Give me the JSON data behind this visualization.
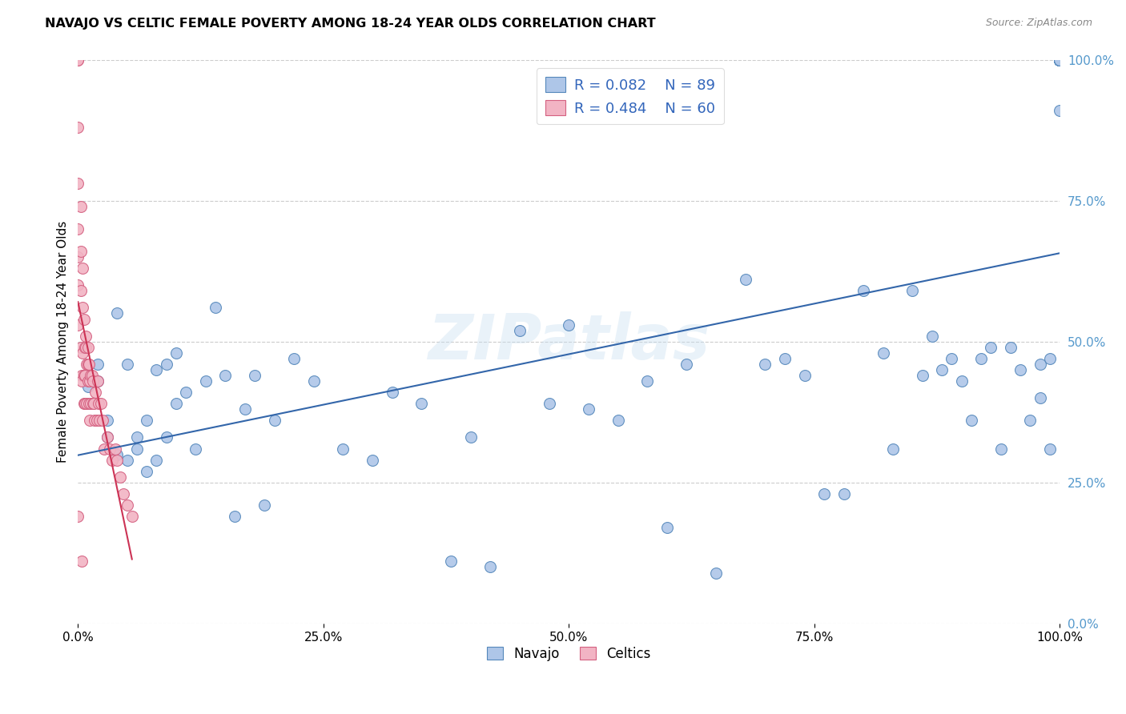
{
  "title": "NAVAJO VS CELTIC FEMALE POVERTY AMONG 18-24 YEAR OLDS CORRELATION CHART",
  "source": "Source: ZipAtlas.com",
  "ylabel": "Female Poverty Among 18-24 Year Olds",
  "xlim": [
    0.0,
    1.0
  ],
  "ylim": [
    0.0,
    1.0
  ],
  "xticks": [
    0.0,
    0.25,
    0.5,
    0.75,
    1.0
  ],
  "yticks": [
    0.0,
    0.25,
    0.5,
    0.75,
    1.0
  ],
  "xtick_labels": [
    "0.0%",
    "25.0%",
    "50.0%",
    "75.0%",
    "100.0%"
  ],
  "ytick_labels": [
    "0.0%",
    "25.0%",
    "50.0%",
    "75.0%",
    "100.0%"
  ],
  "navajo_color": "#aec6e8",
  "celtics_color": "#f2b4c4",
  "navajo_edge_color": "#5588bb",
  "celtics_edge_color": "#d46080",
  "trend_navajo_color": "#3366aa",
  "trend_celtics_color": "#cc3355",
  "legend_r_navajo": "R = 0.082",
  "legend_n_navajo": "N = 89",
  "legend_r_celtics": "R = 0.484",
  "legend_n_celtics": "N = 60",
  "watermark": "ZIPatlas",
  "navajo_x": [
    0.01,
    0.01,
    0.02,
    0.02,
    0.03,
    0.03,
    0.04,
    0.04,
    0.05,
    0.05,
    0.06,
    0.06,
    0.07,
    0.07,
    0.08,
    0.08,
    0.09,
    0.09,
    0.1,
    0.1,
    0.11,
    0.12,
    0.13,
    0.14,
    0.15,
    0.16,
    0.17,
    0.18,
    0.19,
    0.2,
    0.22,
    0.24,
    0.27,
    0.3,
    0.32,
    0.35,
    0.38,
    0.4,
    0.42,
    0.45,
    0.48,
    0.5,
    0.52,
    0.55,
    0.58,
    0.6,
    0.62,
    0.65,
    0.68,
    0.7,
    0.72,
    0.74,
    0.76,
    0.78,
    0.8,
    0.82,
    0.83,
    0.85,
    0.86,
    0.87,
    0.88,
    0.89,
    0.9,
    0.91,
    0.92,
    0.93,
    0.94,
    0.95,
    0.96,
    0.97,
    0.98,
    0.98,
    0.99,
    0.99,
    1.0,
    1.0,
    1.0,
    1.0,
    1.0,
    1.0,
    1.0,
    1.0,
    1.0,
    1.0,
    1.0,
    1.0,
    1.0,
    1.0,
    1.0
  ],
  "navajo_y": [
    0.44,
    0.42,
    0.46,
    0.43,
    0.33,
    0.36,
    0.3,
    0.55,
    0.29,
    0.46,
    0.31,
    0.33,
    0.27,
    0.36,
    0.29,
    0.45,
    0.33,
    0.46,
    0.39,
    0.48,
    0.41,
    0.31,
    0.43,
    0.56,
    0.44,
    0.19,
    0.38,
    0.44,
    0.21,
    0.36,
    0.47,
    0.43,
    0.31,
    0.29,
    0.41,
    0.39,
    0.11,
    0.33,
    0.1,
    0.52,
    0.39,
    0.53,
    0.38,
    0.36,
    0.43,
    0.17,
    0.46,
    0.09,
    0.61,
    0.46,
    0.47,
    0.44,
    0.23,
    0.23,
    0.59,
    0.48,
    0.31,
    0.59,
    0.44,
    0.51,
    0.45,
    0.47,
    0.43,
    0.36,
    0.47,
    0.49,
    0.31,
    0.49,
    0.45,
    0.36,
    0.4,
    0.46,
    0.31,
    0.47,
    1.0,
    1.0,
    1.0,
    1.0,
    1.0,
    1.0,
    1.0,
    1.0,
    1.0,
    1.0,
    1.0,
    1.0,
    0.91,
    1.0,
    1.0
  ],
  "celtics_x": [
    0.0,
    0.0,
    0.0,
    0.0,
    0.0,
    0.0,
    0.0,
    0.0,
    0.0,
    0.003,
    0.003,
    0.003,
    0.003,
    0.004,
    0.004,
    0.004,
    0.005,
    0.005,
    0.005,
    0.006,
    0.006,
    0.006,
    0.007,
    0.007,
    0.007,
    0.008,
    0.008,
    0.009,
    0.009,
    0.01,
    0.01,
    0.01,
    0.011,
    0.011,
    0.012,
    0.012,
    0.013,
    0.013,
    0.014,
    0.015,
    0.015,
    0.016,
    0.017,
    0.018,
    0.019,
    0.02,
    0.021,
    0.022,
    0.023,
    0.025,
    0.027,
    0.03,
    0.032,
    0.035,
    0.038,
    0.04,
    0.043,
    0.046,
    0.05,
    0.055
  ],
  "celtics_y": [
    1.0,
    1.0,
    0.88,
    0.78,
    0.7,
    0.65,
    0.6,
    0.53,
    0.19,
    0.74,
    0.66,
    0.59,
    0.49,
    0.44,
    0.11,
    0.43,
    0.63,
    0.56,
    0.48,
    0.44,
    0.39,
    0.54,
    0.49,
    0.44,
    0.39,
    0.51,
    0.49,
    0.46,
    0.39,
    0.49,
    0.46,
    0.43,
    0.39,
    0.46,
    0.43,
    0.36,
    0.44,
    0.39,
    0.44,
    0.39,
    0.43,
    0.39,
    0.36,
    0.41,
    0.36,
    0.43,
    0.39,
    0.36,
    0.39,
    0.36,
    0.31,
    0.33,
    0.31,
    0.29,
    0.31,
    0.29,
    0.26,
    0.23,
    0.21,
    0.19
  ],
  "marker_size": 100,
  "bg_color": "#ffffff",
  "grid_color": "#cccccc",
  "tick_color_right": "#5599cc",
  "legend_text_color": "#3366bb"
}
